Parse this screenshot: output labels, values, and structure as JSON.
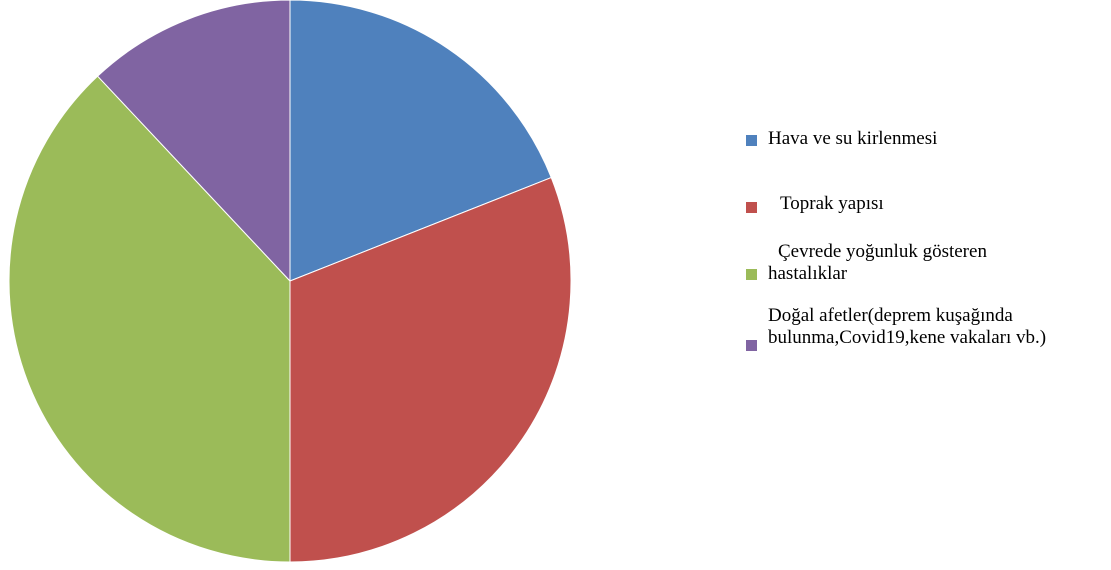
{
  "chart_data": {
    "type": "pie",
    "title": "",
    "legend_position": "right",
    "slices": [
      {
        "label": "Hava ve su kirlenmesi",
        "value": 19,
        "color": "#4F81BD"
      },
      {
        "label": "Toprak yapısı",
        "value": 31,
        "color": "#C0504D"
      },
      {
        "label": "Çevrede yoğunluk gösteren hastalıklar",
        "value": 38,
        "color": "#9BBB59"
      },
      {
        "label": "Doğal afetler(deprem kuşağında bulunma,Covid19,kene vakaları vb.)",
        "value": 12,
        "color": "#8064A2"
      }
    ]
  },
  "legend": {
    "items": [
      {
        "label": "Hava ve su kirlenmesi"
      },
      {
        "label": "Toprak yapısı"
      },
      {
        "label": "Çevrede yoğunluk gösteren\nhastalıklar"
      },
      {
        "label": "Doğal afetler(deprem kuşağında\nbulunma,Covid19,kene vakaları vb.)"
      }
    ]
  }
}
